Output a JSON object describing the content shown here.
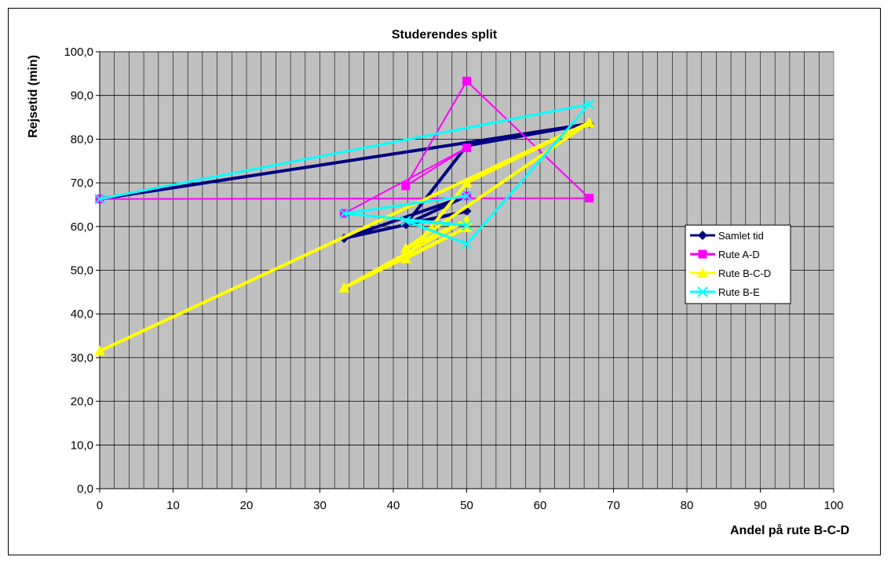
{
  "chart_data": {
    "type": "line",
    "title": "Studerendes split",
    "xlabel": "Andel på rute B-C-D",
    "ylabel": "Rejsetid (min)",
    "xlim": [
      0,
      100
    ],
    "ylim": [
      0,
      100
    ],
    "x_ticks": [
      "0",
      "10",
      "20",
      "30",
      "40",
      "50",
      "60",
      "70",
      "80",
      "90",
      "100"
    ],
    "y_ticks": [
      "0,0",
      "10,0",
      "20,0",
      "30,0",
      "40,0",
      "50,0",
      "60,0",
      "70,0",
      "80,0",
      "90,0",
      "100,0"
    ],
    "grid": "vertical lines every 2, horizontal lines every 10",
    "plot_background": "#c0c0c0",
    "legend_position": "right",
    "series": [
      {
        "name": "Samlet tid",
        "color": "#000080",
        "marker": "diamond",
        "points": [
          [
            0,
            66.3
          ],
          [
            66.7,
            83.5
          ],
          [
            50,
            78.5
          ],
          [
            41.7,
            60.5
          ],
          [
            50,
            67
          ],
          [
            33.3,
            57.3
          ],
          [
            50,
            63.5
          ],
          [
            41.7,
            60.5
          ],
          [
            50,
            78.5
          ]
        ]
      },
      {
        "name": "Rute A-D",
        "color": "#ff00ff",
        "marker": "square",
        "points": [
          [
            0,
            66.3
          ],
          [
            66.7,
            66.5
          ],
          [
            50,
            93.3
          ],
          [
            41.7,
            69.3
          ],
          [
            50,
            78
          ],
          [
            33.3,
            63
          ],
          [
            50,
            67
          ]
        ]
      },
      {
        "name": "Rute B-C-D",
        "color": "#ffff00",
        "marker": "triangle",
        "points": [
          [
            0,
            31.5
          ],
          [
            66.7,
            83.8
          ],
          [
            50,
            70
          ],
          [
            41.7,
            52.7
          ],
          [
            50,
            59.8
          ],
          [
            33.3,
            46
          ],
          [
            50,
            61.5
          ],
          [
            41.7,
            55
          ],
          [
            66.7,
            83.8
          ]
        ]
      },
      {
        "name": "Rute B-E",
        "color": "#00ffff",
        "marker": "x",
        "points": [
          [
            0,
            66.3
          ],
          [
            66.7,
            88
          ],
          [
            50,
            56
          ],
          [
            41.7,
            61.3
          ],
          [
            50,
            60.3
          ],
          [
            33.3,
            63
          ],
          [
            50,
            67
          ]
        ]
      }
    ]
  }
}
